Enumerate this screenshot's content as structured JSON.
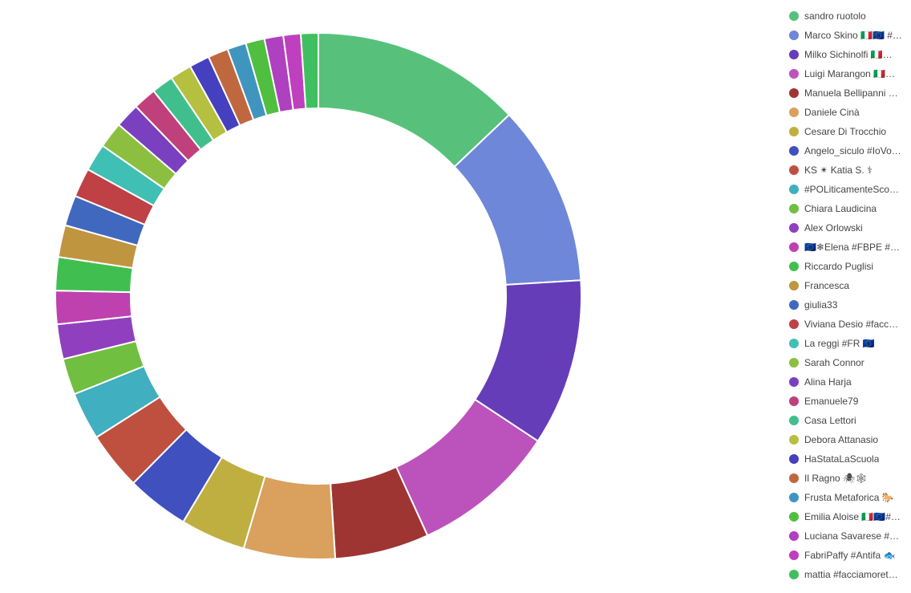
{
  "chart_data": {
    "type": "pie",
    "donut": true,
    "legend_position": "right",
    "title": "",
    "unit": "",
    "series": [
      {
        "name": "sandro ruotolo",
        "value": 14.5,
        "color": "#57c17b"
      },
      {
        "name": "Marco Skino 🇮🇹🇪🇺 #f…",
        "value": 12.5,
        "color": "#6f87d8"
      },
      {
        "name": "Milko Sichinolfi 🇮🇹🇪🇺…",
        "value": 11.5,
        "color": "#663db8"
      },
      {
        "name": "Luigi Marangon 🇮🇹🇪🇺…",
        "value": 10.0,
        "color": "#bc52bc"
      },
      {
        "name": "Manuela Bellipanni …",
        "value": 6.5,
        "color": "#9e3533"
      },
      {
        "name": "Daniele Cinà",
        "value": 6.3,
        "color": "#daa05d"
      },
      {
        "name": "Cesare Di Trocchio",
        "value": 4.5,
        "color": "#bfaf40"
      },
      {
        "name": "Angelo_siculo #IoVot…",
        "value": 4.3,
        "color": "#4050bf"
      },
      {
        "name": "KS ✴ Katia S. ⚕",
        "value": 4.0,
        "color": "#bf5040"
      },
      {
        "name": "#POLiticamenteSco…",
        "value": 3.3,
        "color": "#40afbf"
      },
      {
        "name": "Chiara Laudicina",
        "value": 2.5,
        "color": "#70bf40"
      },
      {
        "name": "Alex Orlowski",
        "value": 2.4,
        "color": "#9040bf"
      },
      {
        "name": "🇪🇺❄Elena #FBPE #d…",
        "value": 2.3,
        "color": "#bf40af"
      },
      {
        "name": "Riccardo Puglisi",
        "value": 2.3,
        "color": "#40bf50"
      },
      {
        "name": "Francesca",
        "value": 2.2,
        "color": "#bf9540"
      },
      {
        "name": "giulia33",
        "value": 2.1,
        "color": "#4068bf"
      },
      {
        "name": "Viviana Desio #facc…",
        "value": 2.0,
        "color": "#bf4045"
      },
      {
        "name": "La reggi #FR 🇪🇺",
        "value": 1.9,
        "color": "#40bfb5"
      },
      {
        "name": "Sarah Connor",
        "value": 1.8,
        "color": "#8cbf40"
      },
      {
        "name": "Alina Harja",
        "value": 1.7,
        "color": "#7a40bf"
      },
      {
        "name": "Emanuele79",
        "value": 1.6,
        "color": "#bf407a"
      },
      {
        "name": "Casa Lettori",
        "value": 1.5,
        "color": "#40bf8c"
      },
      {
        "name": "Debora Attanasio",
        "value": 1.5,
        "color": "#b5bf40"
      },
      {
        "name": "HaStataLaScuola",
        "value": 1.4,
        "color": "#4540bf"
      },
      {
        "name": "Il Ragno 🕷🕸",
        "value": 1.4,
        "color": "#bf6840"
      },
      {
        "name": "Frusta Metaforica 🐎",
        "value": 1.3,
        "color": "#4095bf"
      },
      {
        "name": "Emilia Aloise 🇮🇹🇪🇺#F…",
        "value": 1.3,
        "color": "#50bf40"
      },
      {
        "name": "Luciana Savarese #…",
        "value": 1.3,
        "color": "#af40bf"
      },
      {
        "name": "FabriPaffy #Antifa 🐟",
        "value": 1.2,
        "color": "#bf40bf"
      },
      {
        "name": "mattia #facciamoret…",
        "value": 1.2,
        "color": "#40bf60"
      }
    ]
  }
}
